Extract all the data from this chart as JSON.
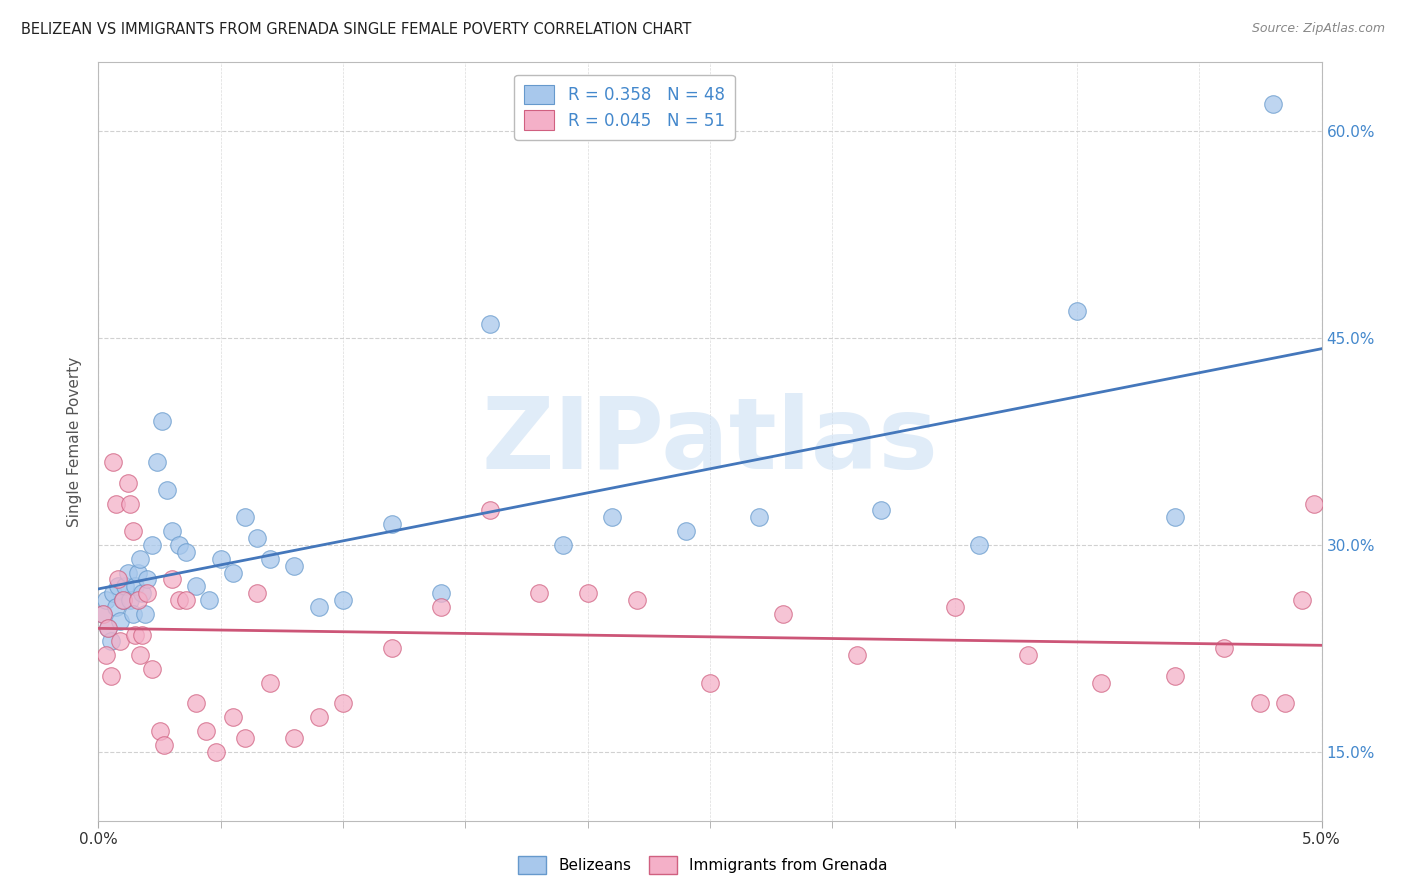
{
  "title": "BELIZEAN VS IMMIGRANTS FROM GRENADA SINGLE FEMALE POVERTY CORRELATION CHART",
  "source": "Source: ZipAtlas.com",
  "ylabel": "Single Female Poverty",
  "xmin": 0.0,
  "xmax": 5.0,
  "ymin": 10.0,
  "ymax": 65.0,
  "yticks": [
    15.0,
    30.0,
    45.0,
    60.0
  ],
  "blue_R": 0.358,
  "blue_N": 48,
  "pink_R": 0.045,
  "pink_N": 51,
  "belizeans_x": [
    0.02,
    0.03,
    0.04,
    0.05,
    0.06,
    0.07,
    0.08,
    0.09,
    0.1,
    0.11,
    0.12,
    0.13,
    0.14,
    0.15,
    0.16,
    0.17,
    0.18,
    0.19,
    0.2,
    0.22,
    0.24,
    0.26,
    0.28,
    0.3,
    0.33,
    0.36,
    0.4,
    0.45,
    0.5,
    0.55,
    0.6,
    0.65,
    0.7,
    0.8,
    0.9,
    1.0,
    1.2,
    1.4,
    1.6,
    1.9,
    2.1,
    2.4,
    2.7,
    3.2,
    3.6,
    4.0,
    4.4,
    4.8
  ],
  "belizeans_y": [
    25.0,
    26.0,
    24.0,
    23.0,
    26.5,
    25.5,
    27.0,
    24.5,
    26.0,
    27.0,
    28.0,
    26.0,
    25.0,
    27.0,
    28.0,
    29.0,
    26.5,
    25.0,
    27.5,
    30.0,
    36.0,
    39.0,
    34.0,
    31.0,
    30.0,
    29.5,
    27.0,
    26.0,
    29.0,
    28.0,
    32.0,
    30.5,
    29.0,
    28.5,
    25.5,
    26.0,
    31.5,
    26.5,
    46.0,
    30.0,
    32.0,
    31.0,
    32.0,
    32.5,
    30.0,
    47.0,
    32.0,
    62.0
  ],
  "grenada_x": [
    0.02,
    0.03,
    0.04,
    0.05,
    0.06,
    0.07,
    0.08,
    0.09,
    0.1,
    0.12,
    0.13,
    0.14,
    0.15,
    0.16,
    0.17,
    0.18,
    0.2,
    0.22,
    0.25,
    0.27,
    0.3,
    0.33,
    0.36,
    0.4,
    0.44,
    0.48,
    0.55,
    0.6,
    0.65,
    0.7,
    0.8,
    0.9,
    1.0,
    1.2,
    1.4,
    1.6,
    1.8,
    2.0,
    2.2,
    2.5,
    2.8,
    3.1,
    3.5,
    3.8,
    4.1,
    4.4,
    4.6,
    4.75,
    4.85,
    4.92,
    4.97
  ],
  "grenada_y": [
    25.0,
    22.0,
    24.0,
    20.5,
    36.0,
    33.0,
    27.5,
    23.0,
    26.0,
    34.5,
    33.0,
    31.0,
    23.5,
    26.0,
    22.0,
    23.5,
    26.5,
    21.0,
    16.5,
    15.5,
    27.5,
    26.0,
    26.0,
    18.5,
    16.5,
    15.0,
    17.5,
    16.0,
    26.5,
    20.0,
    16.0,
    17.5,
    18.5,
    22.5,
    25.5,
    32.5,
    26.5,
    26.5,
    26.0,
    20.0,
    25.0,
    22.0,
    25.5,
    22.0,
    20.0,
    20.5,
    22.5,
    18.5,
    18.5,
    26.0,
    33.0
  ],
  "blue_scatter_color": "#a8c8ec",
  "blue_edge_color": "#6699cc",
  "pink_scatter_color": "#f4b0c8",
  "pink_edge_color": "#d06080",
  "blue_line_color": "#4477bb",
  "pink_line_color": "#cc5577",
  "watermark_color": "#cce0f4",
  "watermark_text": "ZIPatlas",
  "background_color": "#ffffff",
  "grid_color": "#cccccc",
  "right_axis_color": "#4488cc"
}
